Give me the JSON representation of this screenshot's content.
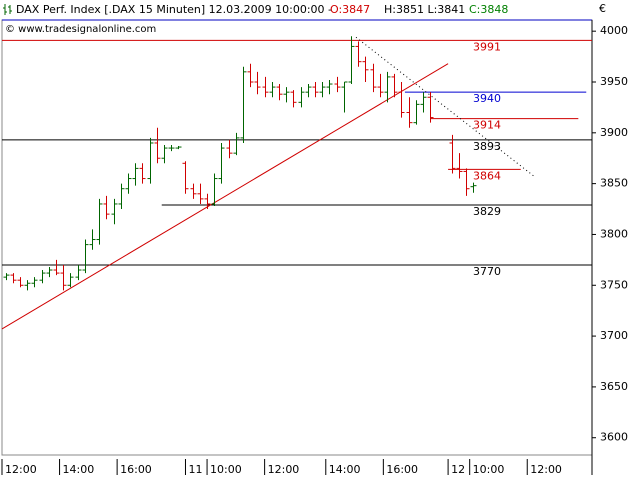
{
  "chart_data": {
    "type": "ohlc",
    "header": {
      "title": "DAX Perf. Index [.DAX  15 Minuten] 12.03.2009 10:00:00 -",
      "open": "O:3847",
      "high_low": "H:3851 L:3841",
      "close": "C:3848"
    },
    "copyright": "© www.tradesignalonline.com",
    "currency": "€",
    "up_color": "#006400",
    "down_color": "#d00000",
    "x": [
      0,
      1,
      2,
      3,
      4,
      5,
      6,
      7,
      8,
      9,
      10,
      11,
      12,
      13,
      14,
      15,
      16,
      17,
      18,
      19,
      20,
      21,
      22,
      23,
      24,
      25,
      26,
      27,
      28,
      29,
      30,
      31,
      32,
      33,
      34,
      35,
      36,
      37,
      38,
      39,
      40,
      41,
      42,
      43,
      44,
      45,
      46,
      47,
      48,
      49,
      50,
      51,
      52,
      53,
      54,
      55,
      56,
      57,
      58,
      59,
      62,
      63,
      64,
      65
    ],
    "open": [
      3758,
      3760,
      3755,
      3750,
      3752,
      3755,
      3762,
      3765,
      3762,
      3750,
      3758,
      3765,
      3790,
      3795,
      3830,
      3820,
      3830,
      3845,
      3855,
      3865,
      3855,
      3890,
      3875,
      3885,
      3885,
      3870,
      3845,
      3840,
      3835,
      3830,
      3855,
      3885,
      3880,
      3895,
      3960,
      3950,
      3945,
      3940,
      3945,
      3938,
      3940,
      3930,
      3940,
      3945,
      3940,
      3945,
      3948,
      3945,
      3950,
      3985,
      3970,
      3962,
      3945,
      3940,
      3955,
      3940,
      3920,
      3910,
      3928,
      3935,
      3890,
      3865,
      3862,
      3847
    ],
    "high": [
      3762,
      3762,
      3758,
      3755,
      3758,
      3765,
      3768,
      3775,
      3770,
      3762,
      3770,
      3795,
      3805,
      3835,
      3838,
      3835,
      3850,
      3860,
      3870,
      3870,
      3895,
      3905,
      3888,
      3888,
      3887,
      3872,
      3850,
      3850,
      3840,
      3860,
      3890,
      3893,
      3900,
      3965,
      3968,
      3960,
      3955,
      3950,
      3948,
      3945,
      3942,
      3945,
      3948,
      3950,
      3950,
      3952,
      3955,
      3950,
      3995,
      3990,
      3975,
      3968,
      3958,
      3960,
      3958,
      3950,
      3935,
      3932,
      3940,
      3940,
      3898,
      3880,
      3865,
      3851
    ],
    "low": [
      3755,
      3752,
      3748,
      3745,
      3748,
      3752,
      3758,
      3760,
      3745,
      3748,
      3755,
      3762,
      3785,
      3790,
      3815,
      3810,
      3825,
      3840,
      3848,
      3850,
      3850,
      3870,
      3870,
      3882,
      3884,
      3840,
      3835,
      3830,
      3825,
      3828,
      3850,
      3875,
      3878,
      3890,
      3945,
      3938,
      3935,
      3935,
      3932,
      3930,
      3925,
      3925,
      3935,
      3935,
      3935,
      3938,
      3940,
      3920,
      3948,
      3965,
      3950,
      3940,
      3935,
      3930,
      3935,
      3915,
      3905,
      3908,
      3920,
      3910,
      3860,
      3855,
      3838,
      3841
    ],
    "close": [
      3760,
      3755,
      3750,
      3752,
      3755,
      3762,
      3765,
      3762,
      3750,
      3758,
      3765,
      3790,
      3795,
      3830,
      3820,
      3830,
      3845,
      3855,
      3865,
      3855,
      3890,
      3875,
      3885,
      3885,
      3886,
      3845,
      3840,
      3835,
      3830,
      3855,
      3885,
      3880,
      3895,
      3960,
      3950,
      3945,
      3940,
      3945,
      3938,
      3940,
      3930,
      3940,
      3945,
      3940,
      3945,
      3948,
      3945,
      3950,
      3985,
      3970,
      3962,
      3945,
      3940,
      3955,
      3940,
      3920,
      3910,
      3928,
      3935,
      3915,
      3865,
      3862,
      3845,
      3848
    ],
    "xlim": [
      -0.5,
      81.5
    ],
    "xticks": [
      {
        "value": -0.5,
        "label": "12:00"
      },
      {
        "value": 7.5,
        "label": "14:00"
      },
      {
        "value": 15.5,
        "label": "16:00"
      },
      {
        "value": 25,
        "label": "11"
      },
      {
        "value": 28,
        "label": "10:00"
      },
      {
        "value": 36,
        "label": "12:00"
      },
      {
        "value": 44.5,
        "label": "14:00"
      },
      {
        "value": 52.5,
        "label": "16:00"
      },
      {
        "value": 61.5,
        "label": "12"
      },
      {
        "value": 64.5,
        "label": "10:00"
      },
      {
        "value": 72.5,
        "label": "12:00"
      }
    ],
    "ylim": [
      3583,
      4011
    ],
    "yticks": [
      3600,
      3650,
      3700,
      3750,
      3800,
      3850,
      3900,
      3950,
      4000
    ],
    "levels": [
      {
        "value": 3991,
        "color": "#d00000",
        "from": -0.5,
        "to": 81.5
      },
      {
        "value": 3940,
        "color": "#0000d0",
        "from": 55.5,
        "to": 80.7
      },
      {
        "value": 3914,
        "color": "#d00000",
        "from": 59,
        "to": 79.6
      },
      {
        "value": 3893,
        "color": "#000000",
        "from": -0.5,
        "to": 81.5
      },
      {
        "value": 3864,
        "color": "#d00000",
        "from": 61.5,
        "to": 71.6
      },
      {
        "value": 3829,
        "color": "#000000",
        "from": 21.7,
        "to": 81.5
      },
      {
        "value": 3770,
        "color": "#000000",
        "from": -0.5,
        "to": 81.5
      }
    ],
    "trendlines": [
      {
        "color": "#d00000",
        "dashed": false,
        "x": [
          -0.5,
          61.5
        ],
        "y": [
          3707,
          3968
        ]
      },
      {
        "color": "#000000",
        "dashed": true,
        "x": [
          48.7,
          73.4
        ],
        "y": [
          3994,
          3857.5
        ]
      }
    ]
  }
}
